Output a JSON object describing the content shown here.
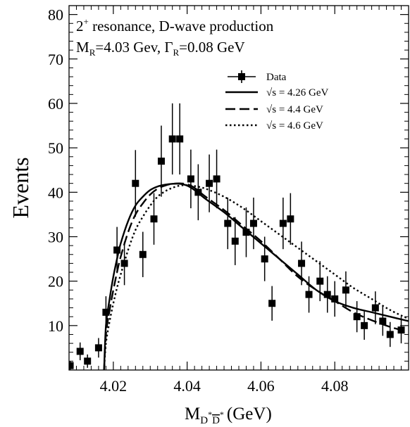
{
  "chart_data": {
    "type": "scatter",
    "title": "",
    "xlabel": {
      "main": "M",
      "sub_D1": "D",
      "sup_star1": "*",
      "sub_D2": "D",
      "sup_star2": "*",
      "unit": "(GeV)"
    },
    "ylabel": "Events",
    "xlim": [
      4.008,
      4.1
    ],
    "ylim": [
      0,
      82
    ],
    "x_ticks": [
      4.02,
      4.04,
      4.06,
      4.08
    ],
    "x_tick_labels": [
      "4.02",
      "4.04",
      "4.06",
      "4.08"
    ],
    "y_ticks": [
      10,
      20,
      30,
      40,
      50,
      60,
      70,
      80
    ],
    "y_tick_labels": [
      "10",
      "20",
      "30",
      "40",
      "50",
      "60",
      "70",
      "80"
    ],
    "grid": false,
    "legend_position": "top-right",
    "annotations": {
      "line1_num": "2",
      "line1_sup": "+",
      "line1_rest": " resonance, D-wave production",
      "line2_M": "M",
      "line2_R1": "R",
      "line2_mid": "=4.03 Gev, Γ",
      "line2_R2": "R",
      "line2_end": "=0.08 GeV"
    },
    "series": [
      {
        "name": "Data",
        "style": "marker",
        "points": [
          {
            "x": 4.0083,
            "y": 1.0,
            "err": 1.0
          },
          {
            "x": 4.011,
            "y": 4.2,
            "err": 2.0
          },
          {
            "x": 4.013,
            "y": 2.0,
            "err": 1.5
          },
          {
            "x": 4.016,
            "y": 5.0,
            "err": 2.2
          },
          {
            "x": 4.018,
            "y": 13.0,
            "err": 3.6
          },
          {
            "x": 4.021,
            "y": 27.0,
            "err": 5.2
          },
          {
            "x": 4.023,
            "y": 24.0,
            "err": 4.9
          },
          {
            "x": 4.026,
            "y": 42.0,
            "err": 7.5
          },
          {
            "x": 4.028,
            "y": 26.0,
            "err": 5.1
          },
          {
            "x": 4.031,
            "y": 34.0,
            "err": 5.8
          },
          {
            "x": 4.033,
            "y": 47.0,
            "err": 8.0
          },
          {
            "x": 4.036,
            "y": 52.0,
            "err": 8.0
          },
          {
            "x": 4.038,
            "y": 52.0,
            "err": 8.0
          },
          {
            "x": 4.041,
            "y": 43.0,
            "err": 6.6
          },
          {
            "x": 4.043,
            "y": 40.0,
            "err": 6.3
          },
          {
            "x": 4.046,
            "y": 42.0,
            "err": 6.5
          },
          {
            "x": 4.048,
            "y": 43.0,
            "err": 6.6
          },
          {
            "x": 4.051,
            "y": 33.0,
            "err": 5.8
          },
          {
            "x": 4.053,
            "y": 29.0,
            "err": 5.4
          },
          {
            "x": 4.056,
            "y": 31.0,
            "err": 5.6
          },
          {
            "x": 4.058,
            "y": 33.0,
            "err": 5.8
          },
          {
            "x": 4.061,
            "y": 25.0,
            "err": 5.0
          },
          {
            "x": 4.063,
            "y": 15.0,
            "err": 3.9
          },
          {
            "x": 4.066,
            "y": 33.0,
            "err": 5.8
          },
          {
            "x": 4.068,
            "y": 34.0,
            "err": 5.8
          },
          {
            "x": 4.071,
            "y": 24.0,
            "err": 4.9
          },
          {
            "x": 4.073,
            "y": 17.0,
            "err": 4.1
          },
          {
            "x": 4.076,
            "y": 20.0,
            "err": 4.5
          },
          {
            "x": 4.078,
            "y": 17.0,
            "err": 4.1
          },
          {
            "x": 4.08,
            "y": 16.0,
            "err": 4.0
          },
          {
            "x": 4.083,
            "y": 18.0,
            "err": 4.2
          },
          {
            "x": 4.086,
            "y": 12.0,
            "err": 3.5
          },
          {
            "x": 4.088,
            "y": 10.0,
            "err": 3.2
          },
          {
            "x": 4.091,
            "y": 14.0,
            "err": 3.7
          },
          {
            "x": 4.093,
            "y": 11.0,
            "err": 3.3
          },
          {
            "x": 4.095,
            "y": 8.0,
            "err": 2.8
          },
          {
            "x": 4.098,
            "y": 9.0,
            "err": 3.0
          }
        ]
      },
      {
        "name": "√s = 4.26 GeV",
        "style": "solid",
        "x": [
          4.0175,
          4.018,
          4.019,
          4.02,
          4.021,
          4.022,
          4.024,
          4.026,
          4.028,
          4.03,
          4.032,
          4.034,
          4.036,
          4.038,
          4.04,
          4.042,
          4.045,
          4.05,
          4.055,
          4.06,
          4.065,
          4.07,
          4.075,
          4.08,
          4.085,
          4.09,
          4.095,
          4.1
        ],
        "y": [
          0,
          10,
          16,
          21,
          25,
          28.5,
          33.5,
          37,
          39,
          40.5,
          41.3,
          41.7,
          41.9,
          41.9,
          41.5,
          40.5,
          38.5,
          35.5,
          32,
          28.5,
          25,
          21.5,
          18,
          15.5,
          14,
          13,
          12,
          11
        ]
      },
      {
        "name": "√s = 4.4 GeV",
        "style": "dashed",
        "x": [
          4.0175,
          4.018,
          4.019,
          4.02,
          4.021,
          4.022,
          4.024,
          4.026,
          4.028,
          4.03,
          4.032,
          4.034,
          4.036,
          4.038,
          4.04,
          4.042,
          4.045,
          4.05,
          4.055,
          4.06,
          4.065,
          4.07,
          4.075,
          4.08,
          4.085,
          4.09,
          4.095,
          4.098
        ],
        "y": [
          0,
          8,
          13.5,
          18,
          22,
          25.5,
          31,
          35,
          37.5,
          39.5,
          40.8,
          41.5,
          41.9,
          42,
          41.8,
          41,
          39,
          36,
          32.5,
          29,
          25,
          21,
          18,
          15.5,
          13,
          11.2,
          9.7,
          9
        ]
      },
      {
        "name": "√s = 4.6 GeV",
        "style": "dotted",
        "x": [
          4.0175,
          4.018,
          4.019,
          4.02,
          4.021,
          4.022,
          4.024,
          4.026,
          4.028,
          4.03,
          4.032,
          4.034,
          4.036,
          4.038,
          4.04,
          4.042,
          4.045,
          4.05,
          4.055,
          4.06,
          4.065,
          4.07,
          4.075,
          4.08,
          4.085,
          4.09,
          4.095,
          4.1
        ],
        "y": [
          0,
          6,
          11,
          15,
          18.5,
          21.5,
          27,
          31.5,
          34.5,
          37,
          39,
          40.2,
          41,
          41.5,
          41.6,
          41.4,
          40.8,
          39,
          36.5,
          33.5,
          30.5,
          27.5,
          24.5,
          21.5,
          18.5,
          16,
          13.5,
          11.5
        ]
      }
    ]
  }
}
